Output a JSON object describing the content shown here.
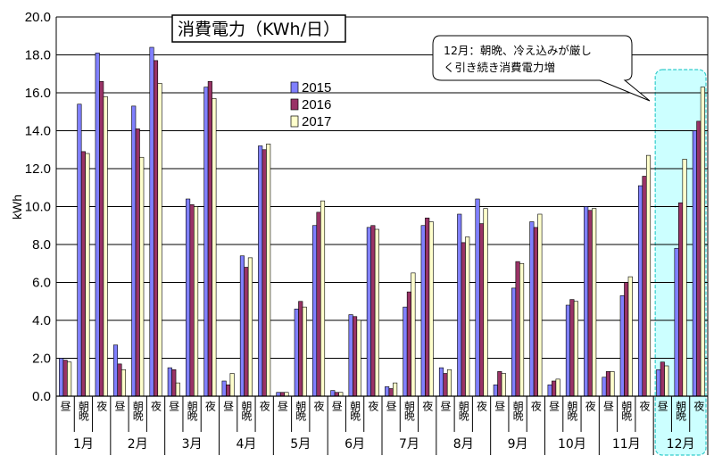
{
  "chart_data": {
    "type": "bar",
    "title": "消費電力（KWh/日）",
    "ylabel": "kWh",
    "ylim": [
      0,
      20
    ],
    "yticks": [
      "0.0",
      "2.0",
      "4.0",
      "6.0",
      "8.0",
      "10.0",
      "12.0",
      "14.0",
      "16.0",
      "18.0",
      "20.0"
    ],
    "grid": true,
    "legend_position": "top-center",
    "months": [
      "1月",
      "2月",
      "3月",
      "4月",
      "5月",
      "6月",
      "7月",
      "8月",
      "9月",
      "10月",
      "11月",
      "12月"
    ],
    "periods": [
      "昼",
      "朝晩",
      "夜"
    ],
    "categories": [
      "1月 昼",
      "1月 朝晩",
      "1月 夜",
      "2月 昼",
      "2月 朝晩",
      "2月 夜",
      "3月 昼",
      "3月 朝晩",
      "3月 夜",
      "4月 昼",
      "4月 朝晩",
      "4月 夜",
      "5月 昼",
      "5月 朝晩",
      "5月 夜",
      "6月 昼",
      "6月 朝晩",
      "6月 夜",
      "7月 昼",
      "7月 朝晩",
      "7月 夜",
      "8月 昼",
      "8月 朝晩",
      "8月 夜",
      "9月 昼",
      "9月 朝晩",
      "9月 夜",
      "10月 昼",
      "10月 朝晩",
      "10月 夜",
      "11月 昼",
      "11月 朝晩",
      "11月 夜",
      "12月 昼",
      "12月 朝晩",
      "12月 夜"
    ],
    "series": [
      {
        "name": "2015",
        "color": "#8080ff",
        "values": [
          2.0,
          15.4,
          18.1,
          2.7,
          15.3,
          18.4,
          1.5,
          10.4,
          16.3,
          0.8,
          7.4,
          13.2,
          0.2,
          4.6,
          9.0,
          0.3,
          4.3,
          8.9,
          0.5,
          4.7,
          9.0,
          1.5,
          9.6,
          10.4,
          0.6,
          5.7,
          9.2,
          0.6,
          4.8,
          10.0,
          1.0,
          5.3,
          11.1,
          1.4,
          7.8,
          14.0
        ]
      },
      {
        "name": "2016",
        "color": "#993366",
        "values": [
          1.9,
          12.9,
          16.6,
          1.7,
          14.1,
          17.7,
          1.4,
          10.1,
          16.6,
          0.6,
          6.8,
          13.0,
          0.2,
          5.0,
          9.7,
          0.2,
          4.2,
          9.0,
          0.4,
          5.5,
          9.4,
          1.2,
          8.1,
          9.1,
          1.3,
          7.1,
          8.9,
          0.8,
          5.1,
          9.8,
          1.3,
          6.0,
          11.6,
          1.8,
          10.2,
          14.5
        ]
      },
      {
        "name": "2017",
        "color": "#ffffcc",
        "values": [
          1.8,
          12.8,
          15.8,
          1.4,
          12.6,
          16.5,
          0.7,
          10.0,
          15.7,
          1.2,
          7.3,
          13.3,
          0.2,
          4.7,
          10.3,
          0.2,
          4.0,
          8.8,
          0.7,
          6.5,
          9.2,
          1.4,
          8.4,
          9.9,
          1.2,
          7.0,
          9.6,
          0.9,
          5.0,
          9.9,
          1.3,
          6.3,
          12.7,
          1.6,
          12.5,
          16.3
        ]
      }
    ],
    "annotation": [
      "12月：朝晩、冷え込みが厳し",
      "く引き続き消費電力増"
    ],
    "highlight_month": "12月",
    "colors": {
      "grid": "#000000",
      "highlight_fill": "#ccffff",
      "highlight_stroke": "#33cccc"
    }
  }
}
